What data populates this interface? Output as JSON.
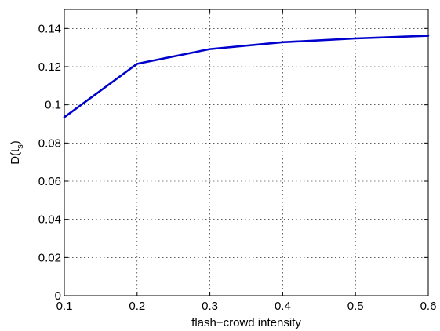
{
  "chart_data": {
    "type": "line",
    "title": "",
    "xlabel": "flash−crowd intensity",
    "ylabel": "D(t",
    "ylabel_subscript": "s",
    "ylabel_close": ")",
    "xlim": [
      0.1,
      0.6
    ],
    "ylim": [
      0,
      0.15
    ],
    "xticks": [
      0.1,
      0.2,
      0.3,
      0.4,
      0.5,
      0.6
    ],
    "xtick_labels": [
      "0.1",
      "0.2",
      "0.3",
      "0.4",
      "0.5",
      "0.6"
    ],
    "yticks": [
      0,
      0.02,
      0.04,
      0.06,
      0.08,
      0.1,
      0.12,
      0.14
    ],
    "ytick_labels": [
      "0",
      "0.02",
      "0.04",
      "0.06",
      "0.08",
      "0.1",
      "0.12",
      "0.14"
    ],
    "grid": true,
    "legend": "none",
    "series": [
      {
        "color": "#0000cc",
        "x": [
          0.1,
          0.2,
          0.3,
          0.4,
          0.5,
          0.6
        ],
        "y": [
          0.0935,
          0.1215,
          0.1292,
          0.1328,
          0.1348,
          0.1362
        ]
      }
    ]
  }
}
